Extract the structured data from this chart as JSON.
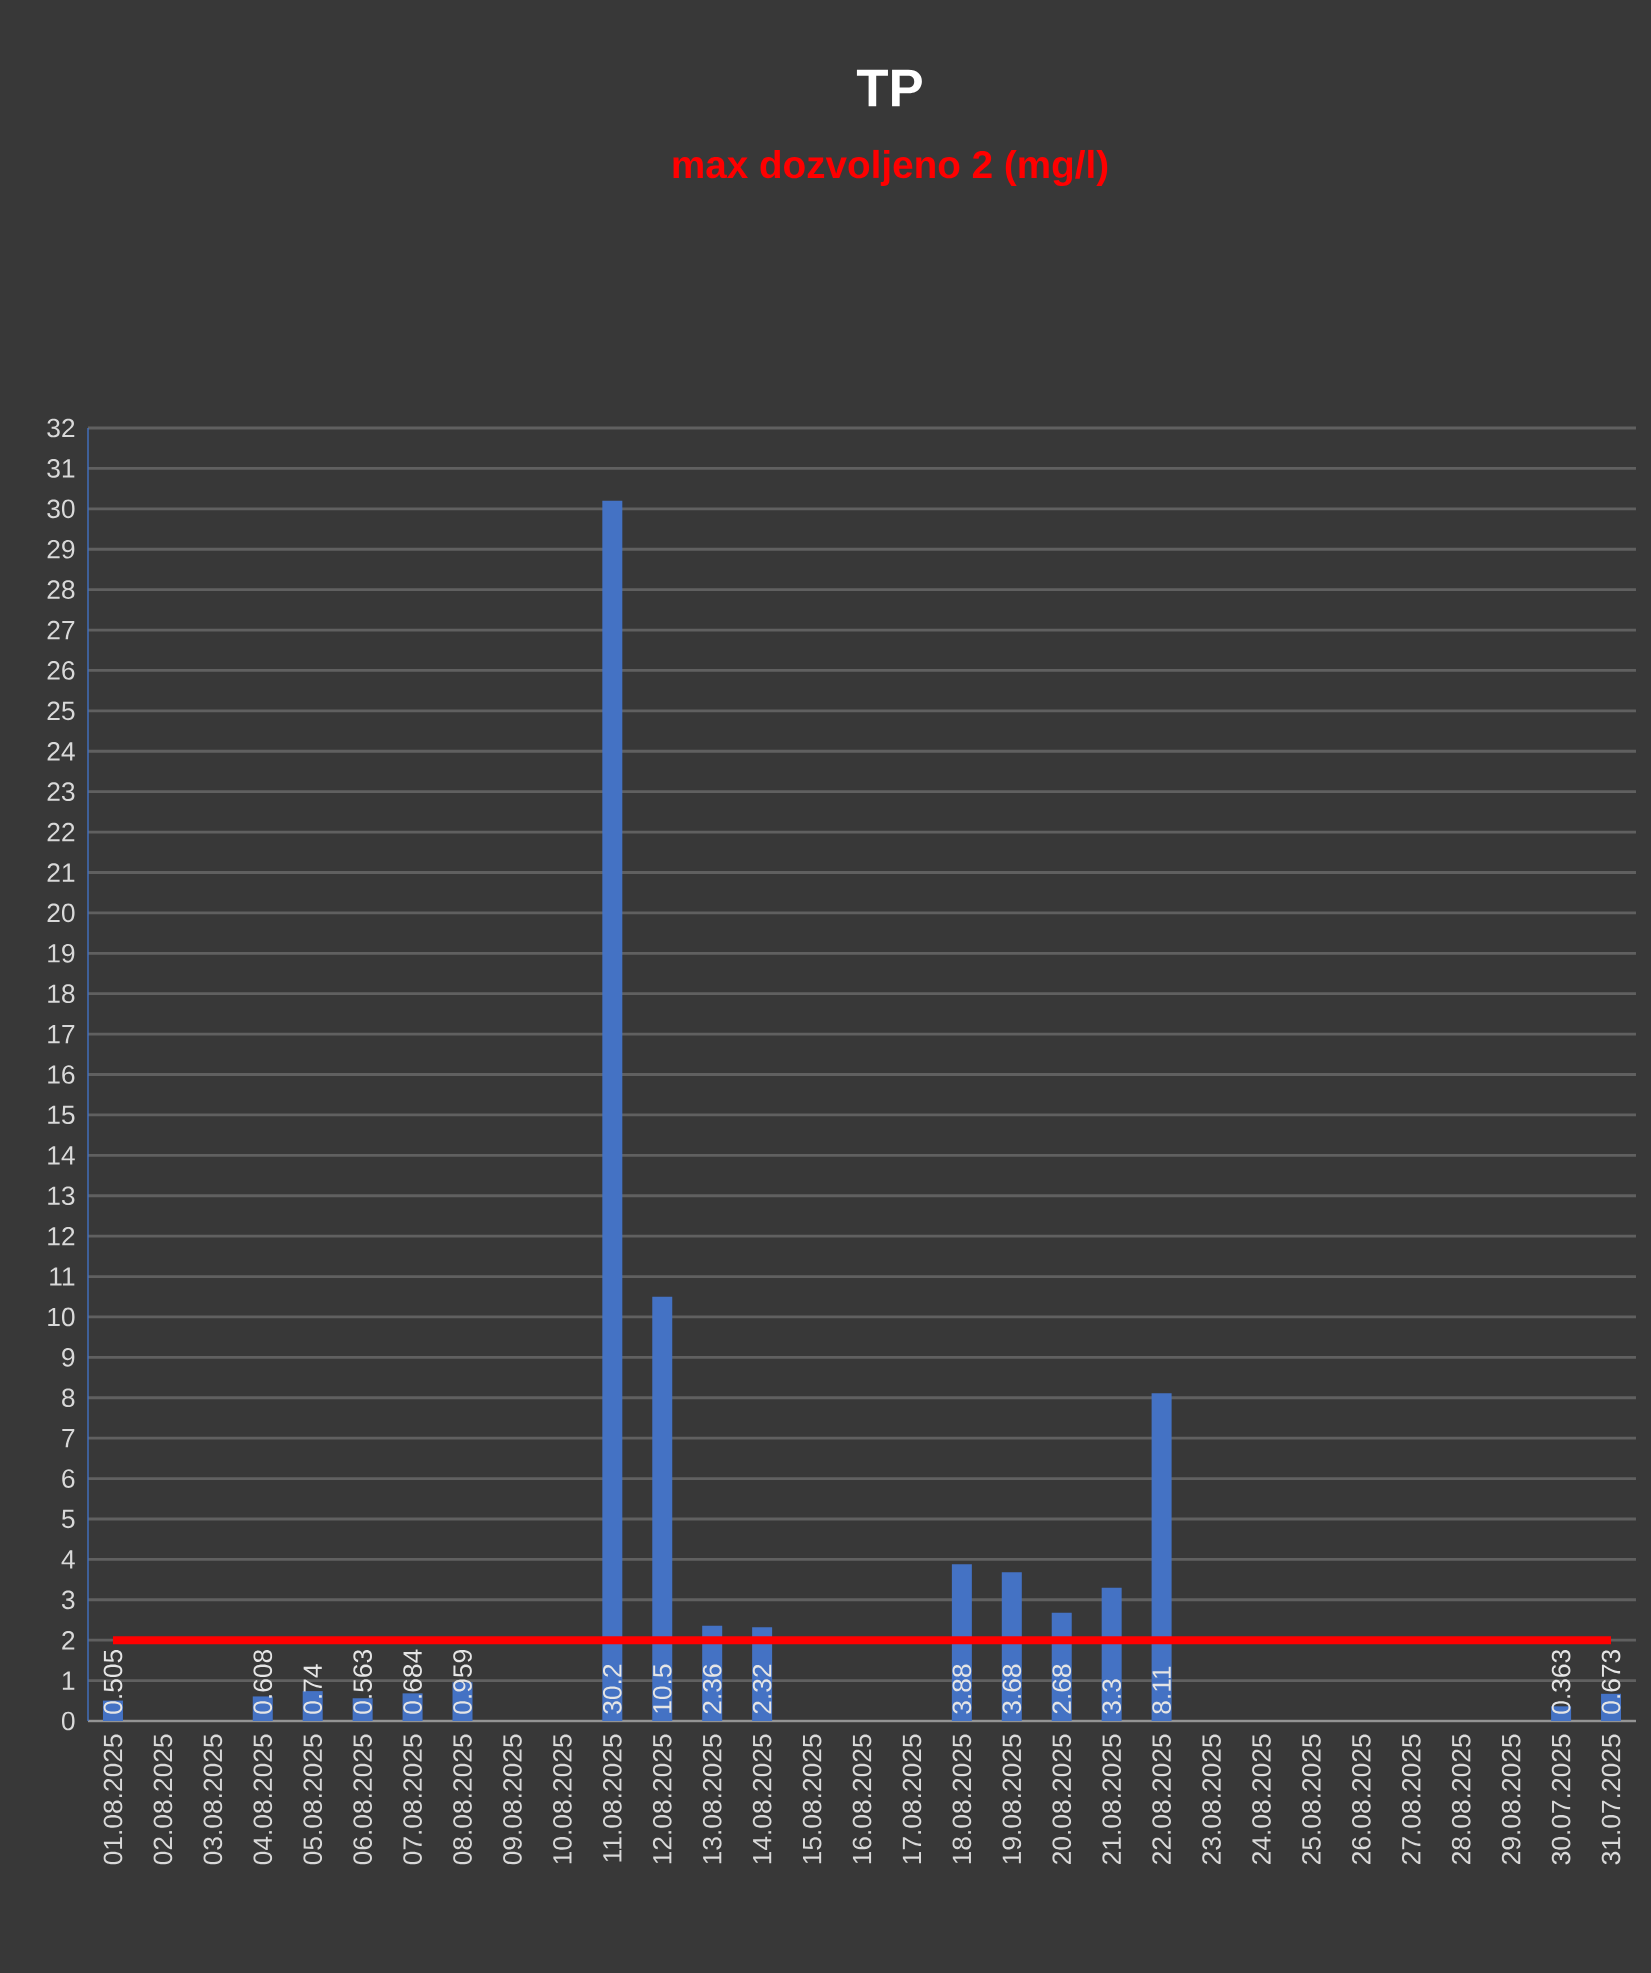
{
  "chart_data": {
    "type": "bar",
    "title": "TP",
    "subtitle": "max dozvoljeno 2 (mg/l)",
    "categories": [
      "01.08.2025",
      "02.08.2025",
      "03.08.2025",
      "04.08.2025",
      "05.08.2025",
      "06.08.2025",
      "07.08.2025",
      "08.08.2025",
      "09.08.2025",
      "10.08.2025",
      "11.08.2025",
      "12.08.2025",
      "13.08.2025",
      "14.08.2025",
      "15.08.2025",
      "16.08.2025",
      "17.08.2025",
      "18.08.2025",
      "19.08.2025",
      "20.08.2025",
      "21.08.2025",
      "22.08.2025",
      "23.08.2025",
      "24.08.2025",
      "25.08.2025",
      "26.08.2025",
      "27.08.2025",
      "28.08.2025",
      "29.08.2025",
      "30.07.2025",
      "31.07.2025"
    ],
    "values": [
      0.505,
      null,
      null,
      0.608,
      0.74,
      0.563,
      0.684,
      0.959,
      null,
      null,
      30.2,
      10.5,
      2.36,
      2.32,
      null,
      null,
      null,
      3.88,
      3.68,
      2.68,
      3.3,
      8.11,
      null,
      null,
      null,
      null,
      null,
      null,
      null,
      0.363,
      0.673
    ],
    "color": "#4472c4",
    "ylim": [
      0,
      32
    ],
    "yticks": [
      0,
      1,
      2,
      3,
      4,
      5,
      6,
      7,
      8,
      9,
      10,
      11,
      12,
      13,
      14,
      15,
      16,
      17,
      18,
      19,
      20,
      21,
      22,
      23,
      24,
      25,
      26,
      27,
      28,
      29,
      30,
      31,
      32
    ],
    "grid": "y",
    "data_labels": true,
    "ref_lines": [
      {
        "axis": "y",
        "value": 2,
        "color": "#ff0000"
      }
    ]
  }
}
